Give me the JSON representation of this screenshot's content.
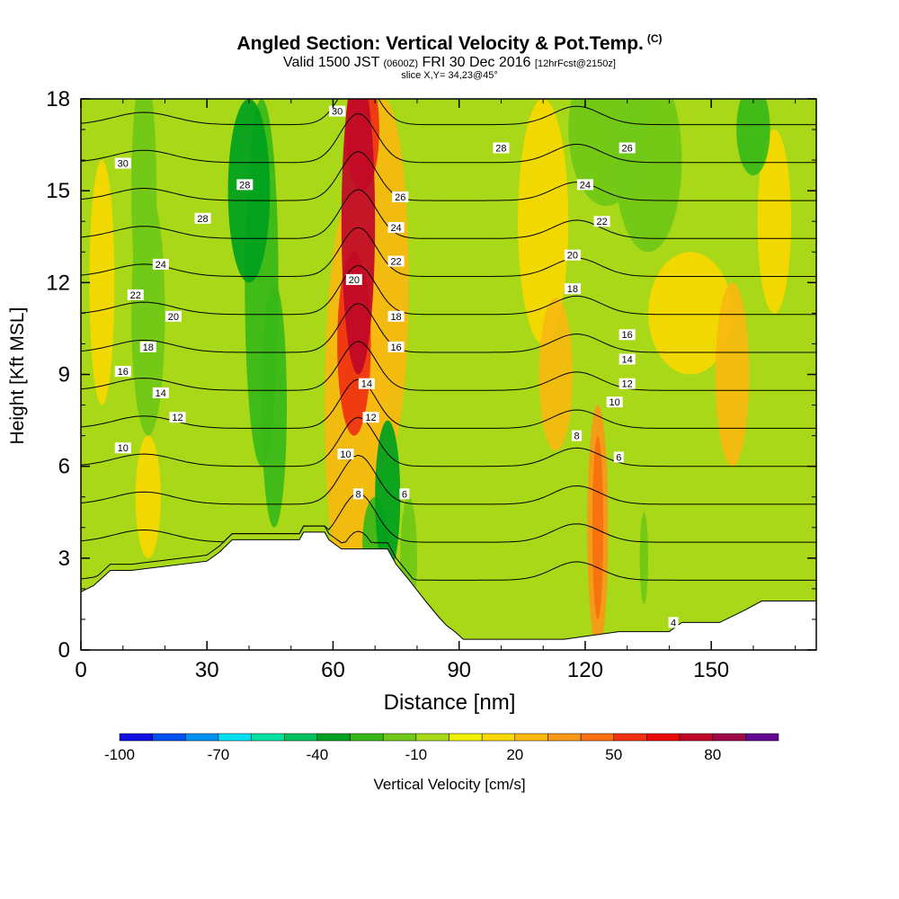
{
  "header": {
    "title": "Angled Section: Vertical Velocity & Pot.Temp.",
    "title_unit": "(C)",
    "valid_prefix": "Valid 1500 JST",
    "valid_utc": "(0600Z)",
    "valid_date": "FRI 30 Dec 2016",
    "forecast": "[12hrFcst@2150z]",
    "slice": "slice X,Y= 34,23@45°"
  },
  "colorbar": {
    "label": "Vertical Velocity [cm/s]",
    "tick_labels": [
      "-100",
      "-70",
      "-40",
      "-10",
      "20",
      "50",
      "80"
    ],
    "bins_from": -100,
    "bin_width": 10,
    "colors": [
      "#1010e0",
      "#0050f0",
      "#0090f0",
      "#00e0f0",
      "#00e0a0",
      "#00c060",
      "#00a020",
      "#38b818",
      "#70c818",
      "#a8d818",
      "#f0f000",
      "#f8d800",
      "#f8b810",
      "#f89818",
      "#f87010",
      "#f03010",
      "#e80808",
      "#c00828",
      "#a00848",
      "#600890"
    ]
  },
  "chart_data": {
    "type": "heatmap",
    "title": "Angled Section: Vertical Velocity & Pot.Temp.",
    "xlabel": "Distance [nm]",
    "ylabel": "Height [Kft MSL]",
    "xlim": [
      0,
      175
    ],
    "ylim": [
      0,
      18
    ],
    "xticks": [
      "0",
      "30",
      "60",
      "90",
      "120",
      "150"
    ],
    "yticks": [
      "0",
      "3",
      "6",
      "9",
      "12",
      "15",
      "18"
    ],
    "field": "Vertical Velocity [cm/s]",
    "background_value": -5,
    "features": [
      {
        "x": 66,
        "y": 14,
        "value": 75,
        "rx": 4,
        "ry": 5
      },
      {
        "x": 65,
        "y": 10,
        "value": 55,
        "rx": 4,
        "ry": 3
      },
      {
        "x": 67,
        "y": 17,
        "value": 50,
        "rx": 4,
        "ry": 2
      },
      {
        "x": 65,
        "y": 8,
        "value": 25,
        "rx": 7,
        "ry": 7
      },
      {
        "x": 72,
        "y": 12,
        "value": 20,
        "rx": 6,
        "ry": 6
      },
      {
        "x": 40,
        "y": 15,
        "value": -40,
        "rx": 5,
        "ry": 3
      },
      {
        "x": 43,
        "y": 12,
        "value": -30,
        "rx": 4,
        "ry": 6
      },
      {
        "x": 46,
        "y": 8,
        "value": -25,
        "rx": 3,
        "ry": 4
      },
      {
        "x": 15,
        "y": 15,
        "value": -20,
        "rx": 3,
        "ry": 4
      },
      {
        "x": 16,
        "y": 11,
        "value": -15,
        "rx": 4,
        "ry": 4
      },
      {
        "x": 73,
        "y": 5,
        "value": -40,
        "rx": 3,
        "ry": 2.5
      },
      {
        "x": 70,
        "y": 3.5,
        "value": -30,
        "rx": 3,
        "ry": 1.5
      },
      {
        "x": 78,
        "y": 3,
        "value": -20,
        "rx": 2,
        "ry": 2
      },
      {
        "x": 125,
        "y": 17,
        "value": -20,
        "rx": 9,
        "ry": 2.5
      },
      {
        "x": 135,
        "y": 16,
        "value": -15,
        "rx": 8,
        "ry": 3
      },
      {
        "x": 160,
        "y": 17,
        "value": -25,
        "rx": 4,
        "ry": 1.5
      },
      {
        "x": 123,
        "y": 4,
        "value": 45,
        "rx": 1.3,
        "ry": 3
      },
      {
        "x": 123,
        "y": 4,
        "value": 30,
        "rx": 2.5,
        "ry": 4
      },
      {
        "x": 113,
        "y": 9,
        "value": 20,
        "rx": 4,
        "ry": 2.5
      },
      {
        "x": 155,
        "y": 9,
        "value": 20,
        "rx": 4,
        "ry": 3
      },
      {
        "x": 145,
        "y": 11,
        "value": 10,
        "rx": 10,
        "ry": 2
      },
      {
        "x": 165,
        "y": 14,
        "value": 10,
        "rx": 4,
        "ry": 3
      },
      {
        "x": 16,
        "y": 5,
        "value": 15,
        "rx": 3,
        "ry": 2
      },
      {
        "x": 5,
        "y": 12,
        "value": 10,
        "rx": 3,
        "ry": 4
      },
      {
        "x": 110,
        "y": 14,
        "value": 10,
        "rx": 6,
        "ry": 4
      },
      {
        "x": 100,
        "y": 3,
        "value": -5,
        "rx": 8,
        "ry": 2
      },
      {
        "x": 134,
        "y": 3,
        "value": -20,
        "rx": 1,
        "ry": 1.5
      }
    ],
    "terrain": [
      [
        0,
        1.9
      ],
      [
        3,
        2.1
      ],
      [
        7,
        2.6
      ],
      [
        12,
        2.6
      ],
      [
        30,
        2.9
      ],
      [
        33,
        3.2
      ],
      [
        36,
        3.6
      ],
      [
        52,
        3.6
      ],
      [
        53,
        3.85
      ],
      [
        58,
        3.85
      ],
      [
        59,
        3.6
      ],
      [
        62,
        3.3
      ],
      [
        73,
        3.3
      ],
      [
        75,
        2.8
      ],
      [
        78,
        2.3
      ],
      [
        82,
        1.6
      ],
      [
        85,
        1.1
      ],
      [
        87,
        0.8
      ],
      [
        89,
        0.6
      ],
      [
        91,
        0.35
      ],
      [
        115,
        0.35
      ],
      [
        128,
        0.6
      ],
      [
        140,
        0.6
      ],
      [
        143,
        0.9
      ],
      [
        152,
        0.9
      ],
      [
        158,
        1.3
      ],
      [
        162,
        1.6
      ],
      [
        175,
        1.6
      ]
    ],
    "theta_levels": [
      4,
      6,
      8,
      10,
      12,
      14,
      16,
      18,
      20,
      22,
      24,
      26,
      28,
      30
    ],
    "theta_labels": [
      {
        "text": "30",
        "x": 10,
        "y": 15.9
      },
      {
        "text": "28",
        "x": 39,
        "y": 15.2
      },
      {
        "text": "28",
        "x": 29,
        "y": 14.1
      },
      {
        "text": "24",
        "x": 19,
        "y": 12.6
      },
      {
        "text": "22",
        "x": 13,
        "y": 11.6
      },
      {
        "text": "20",
        "x": 22,
        "y": 10.9
      },
      {
        "text": "18",
        "x": 16,
        "y": 9.9
      },
      {
        "text": "16",
        "x": 10,
        "y": 9.1
      },
      {
        "text": "14",
        "x": 19,
        "y": 8.4
      },
      {
        "text": "12",
        "x": 23,
        "y": 7.6
      },
      {
        "text": "10",
        "x": 10,
        "y": 6.6
      },
      {
        "text": "30",
        "x": 61,
        "y": 17.6
      },
      {
        "text": "26",
        "x": 76,
        "y": 14.8
      },
      {
        "text": "24",
        "x": 75,
        "y": 13.8
      },
      {
        "text": "22",
        "x": 75,
        "y": 12.7
      },
      {
        "text": "20",
        "x": 65,
        "y": 12.1
      },
      {
        "text": "18",
        "x": 75,
        "y": 10.9
      },
      {
        "text": "16",
        "x": 75,
        "y": 9.9
      },
      {
        "text": "14",
        "x": 68,
        "y": 8.7
      },
      {
        "text": "12",
        "x": 69,
        "y": 7.6
      },
      {
        "text": "10",
        "x": 63,
        "y": 6.4
      },
      {
        "text": "8",
        "x": 66,
        "y": 5.1
      },
      {
        "text": "6",
        "x": 77,
        "y": 5.1
      },
      {
        "text": "28",
        "x": 100,
        "y": 16.4
      },
      {
        "text": "26",
        "x": 130,
        "y": 16.4
      },
      {
        "text": "24",
        "x": 120,
        "y": 15.2
      },
      {
        "text": "22",
        "x": 124,
        "y": 14.0
      },
      {
        "text": "20",
        "x": 117,
        "y": 12.9
      },
      {
        "text": "18",
        "x": 117,
        "y": 11.8
      },
      {
        "text": "16",
        "x": 130,
        "y": 10.3
      },
      {
        "text": "14",
        "x": 130,
        "y": 9.5
      },
      {
        "text": "12",
        "x": 130,
        "y": 8.7
      },
      {
        "text": "10",
        "x": 127,
        "y": 8.1
      },
      {
        "text": "8",
        "x": 118,
        "y": 7.0
      },
      {
        "text": "6",
        "x": 128,
        "y": 6.3
      },
      {
        "text": "4",
        "x": 141,
        "y": 0.9
      }
    ]
  }
}
